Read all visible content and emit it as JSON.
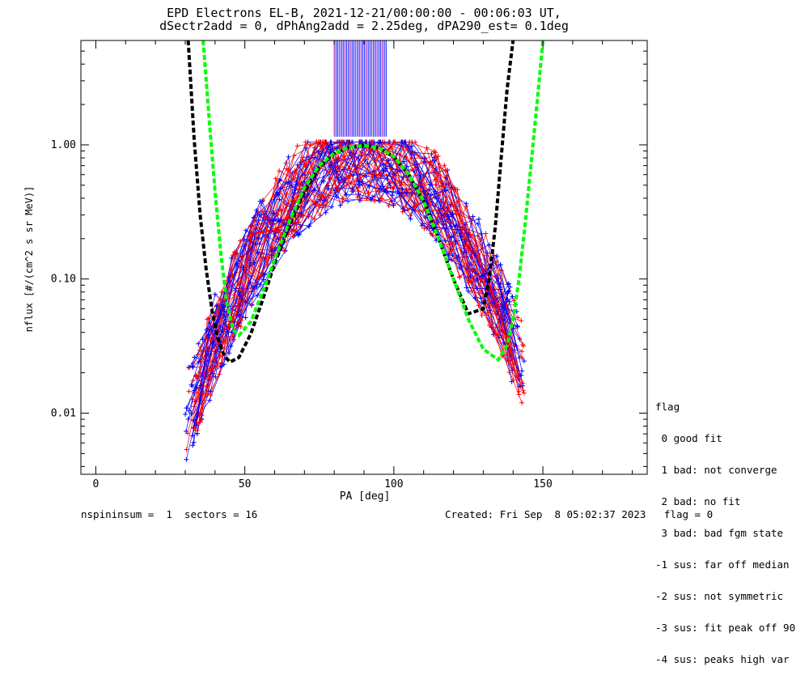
{
  "chart_data": {
    "type": "line",
    "title": "EPD Electrons EL-B, 2021-12-21/00:00:00 - 00:06:03 UT,",
    "subtitle": "dSectr2add = 0, dPhAng2add = 2.25deg, dPA290_est=   0.1deg",
    "xlabel": "PA [deg]",
    "ylabel": "nflux [#/(cm^2 s sr MeV)]",
    "xlim": [
      -5,
      185
    ],
    "ylim": [
      0.0035,
      6.0
    ],
    "yscale": "log",
    "x_ticks": [
      0,
      50,
      100,
      150
    ],
    "x_tick_labels": [
      "0",
      "50",
      "100",
      "150"
    ],
    "y_ticks": [
      0.01,
      0.1,
      1.0
    ],
    "y_tick_labels": [
      "0.01",
      "0.10",
      "1.00"
    ],
    "series": [
      {
        "color": "#000000",
        "style": "dashed",
        "x": [
          31,
          33,
          35,
          37,
          39,
          41,
          43,
          45,
          48,
          52,
          56,
          60,
          65,
          70,
          75,
          80,
          85,
          90,
          95,
          100,
          105,
          110,
          115,
          120,
          125,
          130,
          132,
          134,
          136,
          138,
          140
        ],
        "y": [
          6.0,
          1.1,
          0.3,
          0.12,
          0.058,
          0.036,
          0.027,
          0.024,
          0.026,
          0.039,
          0.07,
          0.13,
          0.25,
          0.45,
          0.68,
          0.86,
          0.96,
          0.99,
          0.95,
          0.82,
          0.6,
          0.38,
          0.2,
          0.1,
          0.055,
          0.06,
          0.1,
          0.24,
          0.8,
          2.6,
          6.0
        ]
      },
      {
        "color": "#00ff00",
        "style": "dashed",
        "x": [
          36,
          38,
          40,
          42,
          44,
          46,
          48,
          52,
          56,
          60,
          65,
          70,
          75,
          80,
          85,
          90,
          95,
          100,
          105,
          110,
          115,
          120,
          125,
          130,
          135,
          138,
          140,
          142,
          144,
          146,
          148,
          150
        ],
        "y": [
          6.0,
          1.6,
          0.45,
          0.15,
          0.065,
          0.042,
          0.038,
          0.048,
          0.08,
          0.14,
          0.27,
          0.48,
          0.7,
          0.87,
          0.96,
          0.99,
          0.95,
          0.82,
          0.6,
          0.38,
          0.2,
          0.1,
          0.05,
          0.03,
          0.025,
          0.032,
          0.05,
          0.1,
          0.25,
          0.7,
          2.0,
          6.0
        ]
      }
    ],
    "legend": {
      "placement": "right",
      "lines": [
        "flag",
        " 0 good fit",
        " 1 bad: not converge",
        " 2 bad: no fit",
        " 3 bad: bad fgm state",
        "-1 sus: far off median",
        "-2 sus: not symmetric",
        "-3 sus: fit peak off 90",
        "-4 sus: peaks high var"
      ]
    },
    "footer_left": "nspininsum =  1  sectors = 16",
    "footer_right": "Created: Fri Sep  8 05:02:37 2023   flag = 0"
  }
}
